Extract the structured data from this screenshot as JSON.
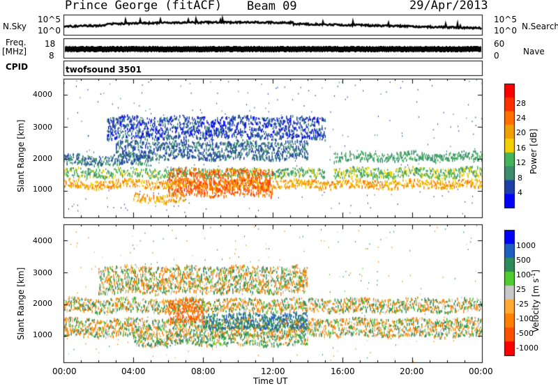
{
  "header": {
    "station": "Prince George (fitACF)",
    "beam": "Beam 09",
    "date": "29/Apr/2013"
  },
  "noise_panel": {
    "left_label": "N.Sky",
    "right_label": "N.Search",
    "y_ticks": [
      "10^5",
      "10^0"
    ]
  },
  "freq_panel": {
    "left_label_1": "Freq.",
    "left_label_2": "[MHz]",
    "right_label": "Nave",
    "left_ticks": [
      "18",
      "8"
    ],
    "right_ticks": [
      "60",
      "0"
    ]
  },
  "cpid": {
    "label": "CPID",
    "value": "twofsound 3501"
  },
  "colors": {
    "power_scale": [
      "#0000ff",
      "#1f3fa8",
      "#3d8c6e",
      "#44b35a",
      "#f0d000",
      "#f0a000",
      "#ff7000",
      "#ff3000",
      "#ff0000"
    ],
    "velocity_scale": [
      "#0000ff",
      "#1d5fbe",
      "#2f8c5a",
      "#50cc30",
      "#c8c8c8",
      "#ffaa33",
      "#ff8000",
      "#ff5000",
      "#ff0000"
    ]
  },
  "chart_data": [
    {
      "type": "heatmap",
      "title": "Power",
      "xlabel": "Time UT",
      "ylabel": "Slant Range [km]",
      "x_ticks": [
        "00:00",
        "04:00",
        "08:00",
        "12:00",
        "16:00",
        "20:00",
        "00:00"
      ],
      "xlim": [
        0,
        24
      ],
      "y_ticks": [
        "1000",
        "2000",
        "3000",
        "4000"
      ],
      "y_tick_values": [
        1000,
        2000,
        3000,
        4000
      ],
      "ylim": [
        180,
        4500
      ],
      "colorbar_label": "Power [dB]",
      "colorbar_ticks": [
        "4",
        "8",
        "12",
        "16",
        "20",
        "24",
        "28"
      ],
      "colorbar_tick_values": [
        4,
        8,
        12,
        16,
        20,
        24,
        28
      ],
      "colorbar_range": [
        0,
        32
      ],
      "bands": [
        {
          "t": [
            0,
            24
          ],
          "center": 1250,
          "width": 180,
          "power": 22
        },
        {
          "t": [
            0,
            15
          ],
          "center": 1600,
          "width": 200,
          "power": 14
        },
        {
          "t": [
            15.5,
            24
          ],
          "center": 1600,
          "width": 220,
          "power": 15
        },
        {
          "t": [
            0,
            5
          ],
          "center": 2000,
          "width": 220,
          "power": 9
        },
        {
          "t": [
            15.5,
            24
          ],
          "center": 2100,
          "width": 200,
          "power": 12
        },
        {
          "t": [
            3,
            14
          ],
          "center": 2300,
          "width": 400,
          "power": 8
        },
        {
          "t": [
            6,
            12
          ],
          "center": 1300,
          "width": 600,
          "power": 27
        },
        {
          "t": [
            4,
            7
          ],
          "center": 800,
          "width": 200,
          "power": 22
        },
        {
          "t": [
            2.5,
            15
          ],
          "center": 3000,
          "width": 500,
          "power": 6
        }
      ]
    },
    {
      "type": "heatmap",
      "title": "Velocity",
      "xlabel": "Time UT",
      "ylabel": "Slant Range [km]",
      "x_ticks": [
        "00:00",
        "04:00",
        "08:00",
        "12:00",
        "16:00",
        "20:00",
        "00:00"
      ],
      "xlim": [
        0,
        24
      ],
      "y_ticks": [
        "1000",
        "2000",
        "3000",
        "4000"
      ],
      "y_tick_values": [
        1000,
        2000,
        3000,
        4000
      ],
      "ylim": [
        180,
        4500
      ],
      "colorbar_label": "Velocity [m s^-1]",
      "colorbar_ticks": [
        "1000",
        "500",
        "100",
        "25",
        "-25",
        "-100",
        "-500",
        "-1000"
      ],
      "bands": [
        {
          "t": [
            0,
            24
          ],
          "center": 1300,
          "width": 400,
          "velocity": 0
        },
        {
          "t": [
            0,
            24
          ],
          "center": 2000,
          "width": 300,
          "velocity": 0
        },
        {
          "t": [
            4,
            14
          ],
          "center": 900,
          "width": 250,
          "velocity": 60
        },
        {
          "t": [
            8,
            14
          ],
          "center": 1500,
          "width": 350,
          "velocity": 300
        },
        {
          "t": [
            6,
            8
          ],
          "center": 1800,
          "width": 500,
          "velocity": -300
        },
        {
          "t": [
            2,
            14
          ],
          "center": 2800,
          "width": 600,
          "velocity": 0
        }
      ]
    }
  ]
}
